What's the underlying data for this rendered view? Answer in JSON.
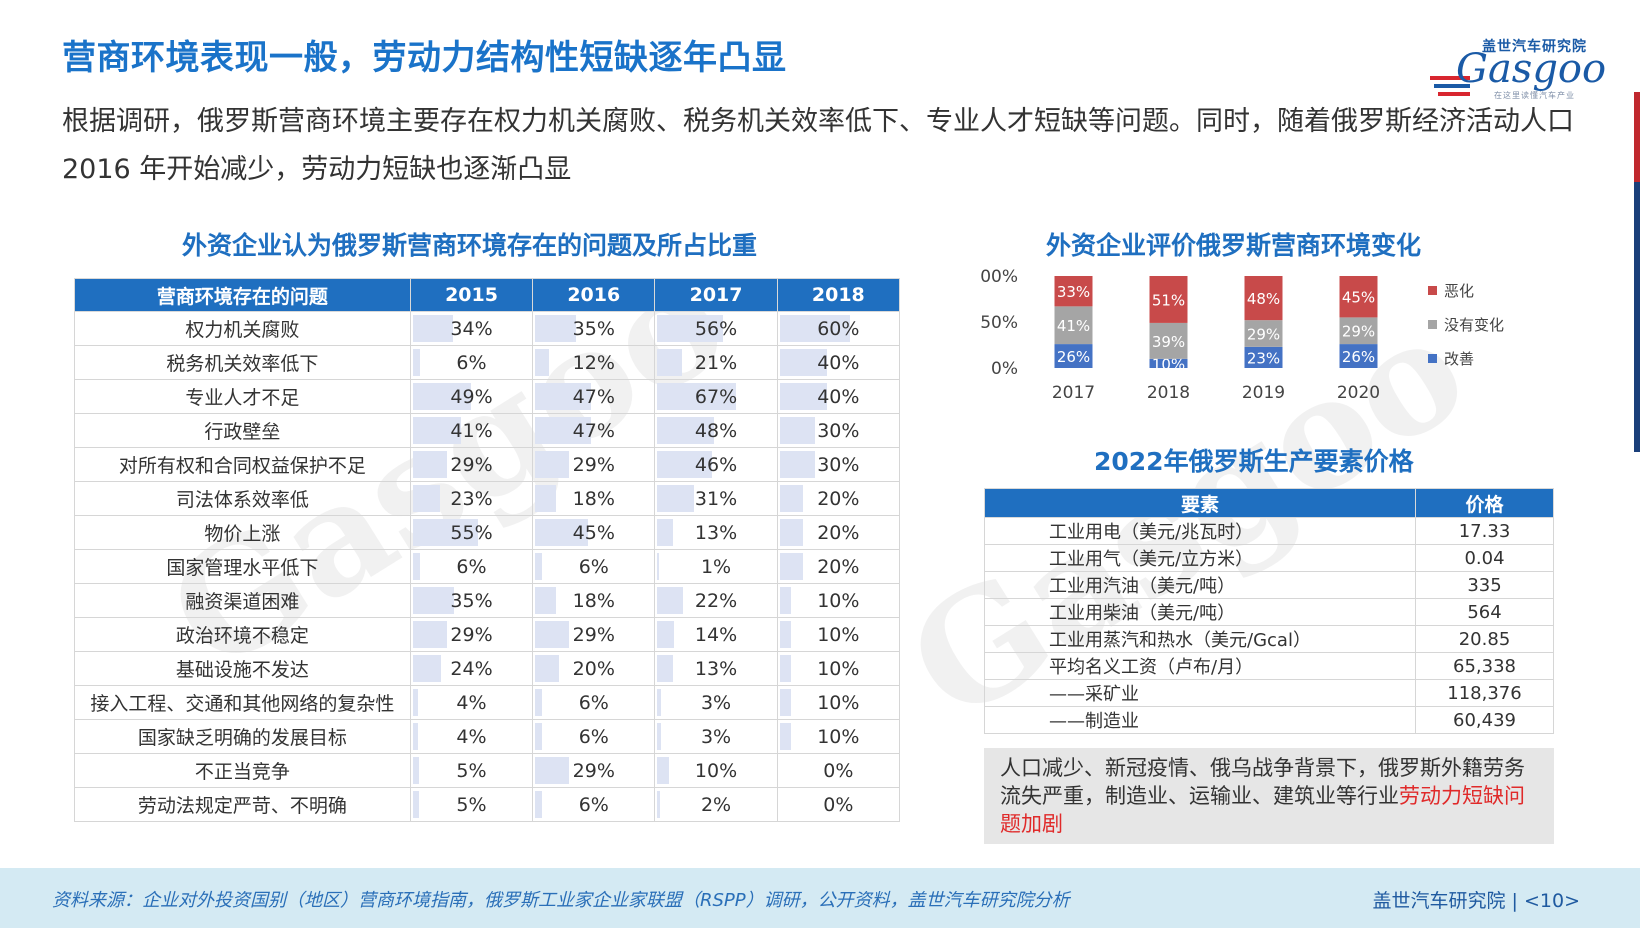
{
  "title": "营商环境表现一般，劳动力结构性短缺逐年凸显",
  "logo": {
    "cn": "盖世汽车研究院",
    "en": "Gasgoo",
    "sub": "在这里读懂汽车产业"
  },
  "intro": "根据调研，俄罗斯营商环境主要存在权力机关腐败、税务机关效率低下、专业人才短缺等问题。同时，随着俄罗斯经济活动人口2016 年开始减少，劳动力短缺也逐渐凸显",
  "issues_table": {
    "title": "外资企业认为俄罗斯营商环境存在的问题及所占比重",
    "headers": [
      "营商环境存在的问题",
      "2015",
      "2016",
      "2017",
      "2018"
    ],
    "rows": [
      {
        "label": "权力机关腐败",
        "values": [
          "34%",
          "35%",
          "56%",
          "60%"
        ]
      },
      {
        "label": "税务机关效率低下",
        "values": [
          "6%",
          "12%",
          "21%",
          "40%"
        ]
      },
      {
        "label": "专业人才不足",
        "values": [
          "49%",
          "47%",
          "67%",
          "40%"
        ]
      },
      {
        "label": "行政壁垒",
        "values": [
          "41%",
          "47%",
          "48%",
          "30%"
        ]
      },
      {
        "label": "对所有权和合同权益保护不足",
        "values": [
          "29%",
          "29%",
          "46%",
          "30%"
        ]
      },
      {
        "label": "司法体系效率低",
        "values": [
          "23%",
          "18%",
          "31%",
          "20%"
        ]
      },
      {
        "label": "物价上涨",
        "values": [
          "55%",
          "45%",
          "13%",
          "20%"
        ]
      },
      {
        "label": "国家管理水平低下",
        "values": [
          "6%",
          "6%",
          "1%",
          "20%"
        ]
      },
      {
        "label": "融资渠道困难",
        "values": [
          "35%",
          "18%",
          "22%",
          "10%"
        ]
      },
      {
        "label": "政治环境不稳定",
        "values": [
          "29%",
          "29%",
          "14%",
          "10%"
        ]
      },
      {
        "label": "基础设施不发达",
        "values": [
          "24%",
          "20%",
          "13%",
          "10%"
        ]
      },
      {
        "label": "接入工程、交通和其他网络的复杂性",
        "values": [
          "4%",
          "6%",
          "3%",
          "10%"
        ]
      },
      {
        "label": "国家缺乏明确的发展目标",
        "values": [
          "4%",
          "6%",
          "3%",
          "10%"
        ]
      },
      {
        "label": "不正当竞争",
        "values": [
          "5%",
          "29%",
          "10%",
          "0%"
        ]
      },
      {
        "label": "劳动法规定严苛、不明确",
        "values": [
          "5%",
          "6%",
          "2%",
          "0%"
        ]
      }
    ]
  },
  "chart_data": {
    "type": "bar",
    "stacked": true,
    "title": "外资企业评价俄罗斯营商环境变化",
    "categories": [
      "2017",
      "2018",
      "2019",
      "2020"
    ],
    "series": [
      {
        "name": "改善",
        "values": [
          26,
          10,
          23,
          26
        ],
        "color": "#4472c4"
      },
      {
        "name": "没有变化",
        "values": [
          41,
          39,
          29,
          29
        ],
        "color": "#a5a5a5"
      },
      {
        "name": "恶化",
        "values": [
          33,
          51,
          48,
          45
        ],
        "color": "#c84a4a"
      }
    ],
    "ylim": [
      0,
      100
    ],
    "yticks": [
      "0%",
      "50%",
      "100%"
    ],
    "legend": "right"
  },
  "price_table": {
    "title": "2022年俄罗斯生产要素价格",
    "headers": [
      "要素",
      "价格"
    ],
    "rows": [
      {
        "factor": "工业用电（美元/兆瓦时）",
        "price": "17.33"
      },
      {
        "factor": "工业用气（美元/立方米）",
        "price": "0.04"
      },
      {
        "factor": "工业用汽油（美元/吨）",
        "price": "335"
      },
      {
        "factor": "工业用柴油（美元/吨）",
        "price": "564"
      },
      {
        "factor": "工业用蒸汽和热水（美元/Gcal）",
        "price": "20.85"
      },
      {
        "factor": "平均名义工资（卢布/月）",
        "price": "65,338"
      },
      {
        "factor": "——采矿业",
        "price": "118,376"
      },
      {
        "factor": "——制造业",
        "price": "60,439"
      }
    ]
  },
  "note": {
    "text": "人口减少、新冠疫情、俄乌战争背景下，俄罗斯外籍劳务流失严重，制造业、运输业、建筑业等行业",
    "highlight": "劳动力短缺问题加剧"
  },
  "footer": {
    "source": "资料来源：企业对外投资国别（地区）营商环境指南，俄罗斯工业家企业家联盟（RSPP）调研，公开资料，盖世汽车研究院分析",
    "org": "盖世汽车研究院 | <10>"
  },
  "colors": {
    "brand_blue": "#1f6fc0",
    "bar_bg": "#dde3f3",
    "highlight_red": "#e02a2a"
  }
}
